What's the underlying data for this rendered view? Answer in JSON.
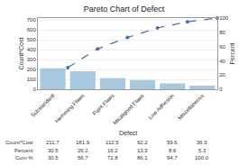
{
  "chart_data": {
    "type": "bar",
    "title": "Pareto Chart of Defect",
    "xlabel": "Defect",
    "ylabel": "Count*Cost",
    "y2label": "Percent",
    "categories": [
      "Substandard",
      "Hemming Flaws",
      "Paint Flaws",
      "Misaligned Flaws",
      "Low Adhesion",
      "Miscellaneous"
    ],
    "series": [
      {
        "type": "bar",
        "color": "#a8c8e0",
        "values": [
          211.7,
          181.9,
          112.5,
          92.2,
          59.6,
          36.9
        ]
      },
      {
        "type": "line",
        "axis": "y2",
        "color": "#4a6fa5",
        "marker": "circle",
        "line_style": "dashed",
        "values": [
          30.5,
          56.7,
          72.8,
          86.1,
          94.7,
          100.0
        ]
      }
    ],
    "ylim": [
      0,
      720
    ],
    "yticks": [
      0,
      100,
      200,
      300,
      400,
      500,
      600,
      700
    ],
    "y2lim": [
      0,
      100
    ],
    "y2ticks": [
      0,
      20,
      40,
      60,
      80,
      100
    ],
    "grid": true,
    "table": {
      "row_labels": [
        "Count*Cost",
        "Percent",
        "Cum %"
      ],
      "cells": [
        [
          "211.7",
          "181.9",
          "112.5",
          "92.2",
          "59.6",
          "36.9"
        ],
        [
          "30.5",
          "26.2",
          "16.2",
          "13.3",
          "8.6",
          "5.3"
        ],
        [
          "30.5",
          "56.7",
          "72.8",
          "86.1",
          "94.7",
          "100.0"
        ]
      ]
    }
  }
}
